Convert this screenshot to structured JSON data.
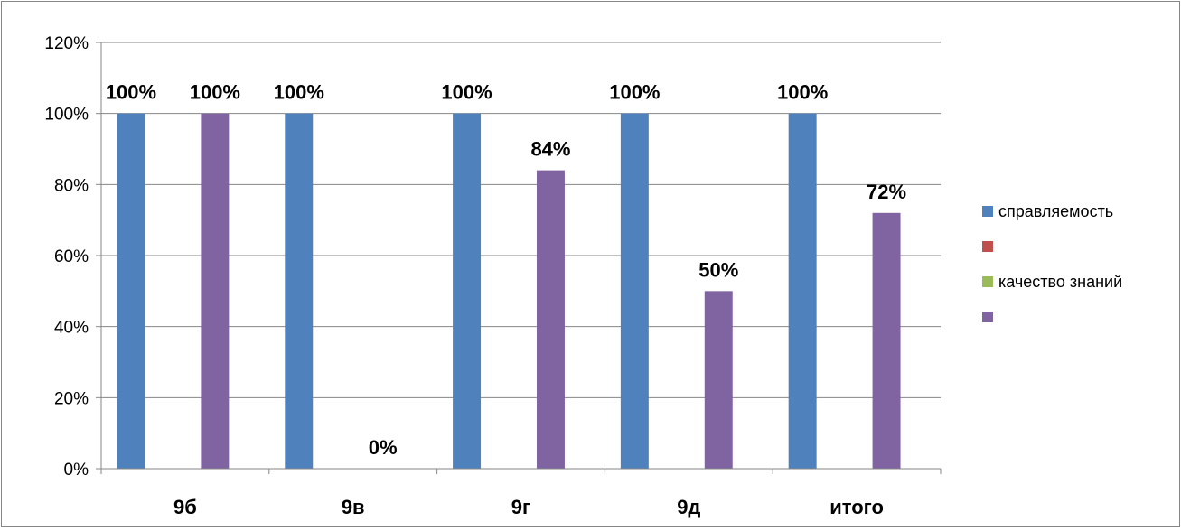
{
  "chart_data": {
    "type": "bar",
    "categories": [
      "9б",
      "9в",
      "9г",
      "9д",
      "итого"
    ],
    "series": [
      {
        "name": "справляемость",
        "color": "#4F81BD",
        "values": [
          1.0,
          1.0,
          1.0,
          1.0,
          1.0
        ],
        "labels": [
          "100%",
          "100%",
          "100%",
          "100%",
          "100%"
        ]
      },
      {
        "name": "",
        "color": "#C0504D",
        "values": [
          null,
          null,
          null,
          null,
          null
        ],
        "labels": []
      },
      {
        "name": "качество знаний",
        "color": "#9BBB59",
        "values": [
          null,
          null,
          null,
          null,
          null
        ],
        "labels": []
      },
      {
        "name": "",
        "color": "#8064A2",
        "values": [
          1.0,
          0.0,
          0.84,
          0.5,
          0.72
        ],
        "labels": [
          "100%",
          "0%",
          "84%",
          "50%",
          "72%"
        ]
      }
    ],
    "ylim": [
      0,
      1.2
    ],
    "yticks": [
      "0%",
      "20%",
      "40%",
      "60%",
      "80%",
      "100%",
      "120%"
    ],
    "grid": true,
    "legend_position": "right"
  }
}
